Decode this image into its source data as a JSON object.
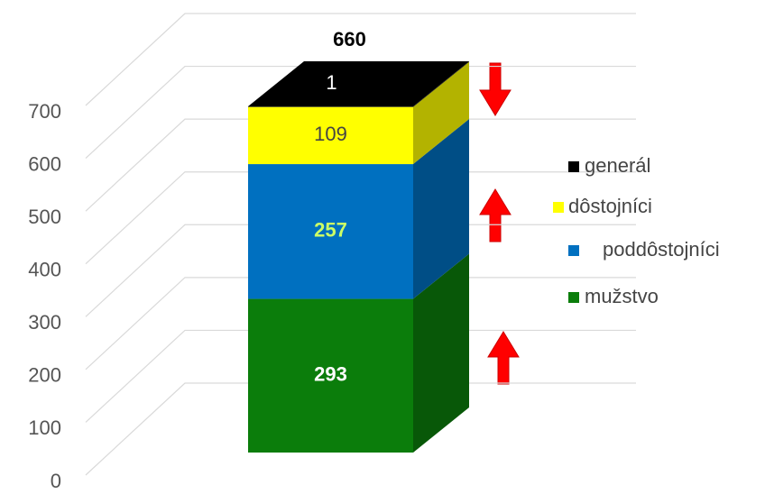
{
  "chart_data": {
    "type": "bar3d_stacked",
    "categories": [
      null
    ],
    "total": 660,
    "series": [
      {
        "name": "mužstvo",
        "color": "#0b7d0b",
        "values": [
          293
        ]
      },
      {
        "name": "poddôstojníci",
        "color": "#0070c0",
        "values": [
          257
        ]
      },
      {
        "name": "dôstojníci",
        "color": "#ffff00",
        "values": [
          109
        ]
      },
      {
        "name": "generál",
        "color": "#000000",
        "values": [
          1
        ]
      }
    ],
    "ylim": [
      0,
      700
    ],
    "yticks": [
      0,
      100,
      200,
      300,
      400,
      500,
      600,
      700
    ],
    "grid": true,
    "legend": "right"
  }
}
